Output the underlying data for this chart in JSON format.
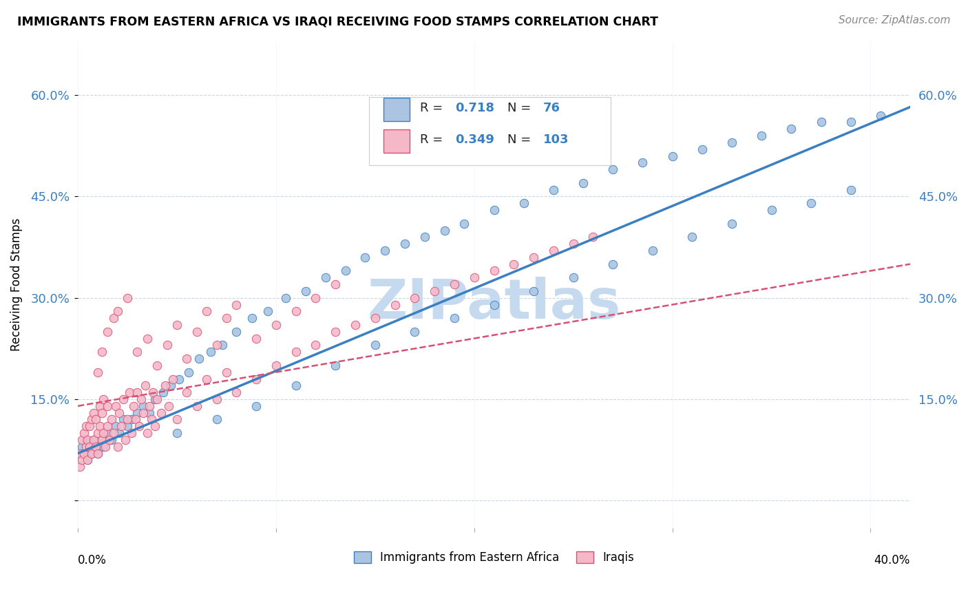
{
  "title": "IMMIGRANTS FROM EASTERN AFRICA VS IRAQI RECEIVING FOOD STAMPS CORRELATION CHART",
  "source": "Source: ZipAtlas.com",
  "ylabel": "Receiving Food Stamps",
  "yticks": [
    0.0,
    0.15,
    0.3,
    0.45,
    0.6
  ],
  "ytick_labels": [
    "",
    "15.0%",
    "30.0%",
    "45.0%",
    "60.0%"
  ],
  "xlim": [
    0.0,
    0.42
  ],
  "ylim": [
    -0.04,
    0.68
  ],
  "R_blue": "0.718",
  "N_blue": "76",
  "R_pink": "0.349",
  "N_pink": "103",
  "blue_color": "#aac4e2",
  "blue_line_color": "#3a7fc1",
  "pink_color": "#f5b8c8",
  "pink_line_color": "#d94f72",
  "watermark": "ZIPatlas",
  "watermark_color": "#c5d9ef",
  "background_color": "#ffffff",
  "grid_color": "#c8d8ea",
  "blue_reg": {
    "slope": 1.22,
    "intercept": 0.07
  },
  "pink_reg": {
    "slope": 0.5,
    "intercept": 0.14
  },
  "blue_scatter_x": [
    0.001,
    0.002,
    0.003,
    0.004,
    0.005,
    0.006,
    0.007,
    0.008,
    0.009,
    0.01,
    0.012,
    0.013,
    0.015,
    0.017,
    0.019,
    0.021,
    0.023,
    0.025,
    0.027,
    0.03,
    0.033,
    0.036,
    0.039,
    0.043,
    0.047,
    0.051,
    0.056,
    0.061,
    0.067,
    0.073,
    0.08,
    0.088,
    0.096,
    0.105,
    0.115,
    0.125,
    0.135,
    0.145,
    0.155,
    0.165,
    0.175,
    0.185,
    0.195,
    0.21,
    0.225,
    0.24,
    0.255,
    0.27,
    0.285,
    0.3,
    0.315,
    0.33,
    0.345,
    0.36,
    0.375,
    0.39,
    0.405,
    0.05,
    0.07,
    0.09,
    0.11,
    0.13,
    0.15,
    0.17,
    0.19,
    0.21,
    0.23,
    0.25,
    0.27,
    0.29,
    0.31,
    0.33,
    0.35,
    0.37,
    0.39
  ],
  "blue_scatter_y": [
    0.07,
    0.08,
    0.07,
    0.09,
    0.06,
    0.08,
    0.07,
    0.09,
    0.08,
    0.07,
    0.09,
    0.08,
    0.1,
    0.09,
    0.11,
    0.1,
    0.12,
    0.11,
    0.12,
    0.13,
    0.14,
    0.13,
    0.15,
    0.16,
    0.17,
    0.18,
    0.19,
    0.21,
    0.22,
    0.23,
    0.25,
    0.27,
    0.28,
    0.3,
    0.31,
    0.33,
    0.34,
    0.36,
    0.37,
    0.38,
    0.39,
    0.4,
    0.41,
    0.43,
    0.44,
    0.46,
    0.47,
    0.49,
    0.5,
    0.51,
    0.52,
    0.53,
    0.54,
    0.55,
    0.56,
    0.56,
    0.57,
    0.1,
    0.12,
    0.14,
    0.17,
    0.2,
    0.23,
    0.25,
    0.27,
    0.29,
    0.31,
    0.33,
    0.35,
    0.37,
    0.39,
    0.41,
    0.43,
    0.44,
    0.46
  ],
  "pink_scatter_x": [
    0.001,
    0.001,
    0.002,
    0.002,
    0.003,
    0.003,
    0.004,
    0.004,
    0.005,
    0.005,
    0.006,
    0.006,
    0.007,
    0.007,
    0.008,
    0.008,
    0.009,
    0.009,
    0.01,
    0.01,
    0.011,
    0.011,
    0.012,
    0.012,
    0.013,
    0.013,
    0.014,
    0.015,
    0.015,
    0.016,
    0.017,
    0.018,
    0.019,
    0.02,
    0.021,
    0.022,
    0.023,
    0.024,
    0.025,
    0.026,
    0.027,
    0.028,
    0.029,
    0.03,
    0.031,
    0.032,
    0.033,
    0.034,
    0.035,
    0.036,
    0.037,
    0.038,
    0.039,
    0.04,
    0.042,
    0.044,
    0.046,
    0.048,
    0.05,
    0.055,
    0.06,
    0.065,
    0.07,
    0.075,
    0.08,
    0.09,
    0.1,
    0.11,
    0.12,
    0.13,
    0.14,
    0.15,
    0.16,
    0.17,
    0.18,
    0.19,
    0.2,
    0.21,
    0.22,
    0.23,
    0.24,
    0.25,
    0.26,
    0.01,
    0.012,
    0.015,
    0.018,
    0.02,
    0.025,
    0.03,
    0.035,
    0.04,
    0.045,
    0.05,
    0.055,
    0.06,
    0.065,
    0.07,
    0.075,
    0.08,
    0.09,
    0.1,
    0.11,
    0.12,
    0.13
  ],
  "pink_scatter_y": [
    0.05,
    0.07,
    0.06,
    0.09,
    0.07,
    0.1,
    0.08,
    0.11,
    0.06,
    0.09,
    0.08,
    0.11,
    0.07,
    0.12,
    0.09,
    0.13,
    0.08,
    0.12,
    0.07,
    0.1,
    0.11,
    0.14,
    0.09,
    0.13,
    0.1,
    0.15,
    0.08,
    0.11,
    0.14,
    0.09,
    0.12,
    0.1,
    0.14,
    0.08,
    0.13,
    0.11,
    0.15,
    0.09,
    0.12,
    0.16,
    0.1,
    0.14,
    0.12,
    0.16,
    0.11,
    0.15,
    0.13,
    0.17,
    0.1,
    0.14,
    0.12,
    0.16,
    0.11,
    0.15,
    0.13,
    0.17,
    0.14,
    0.18,
    0.12,
    0.16,
    0.14,
    0.18,
    0.15,
    0.19,
    0.16,
    0.18,
    0.2,
    0.22,
    0.23,
    0.25,
    0.26,
    0.27,
    0.29,
    0.3,
    0.31,
    0.32,
    0.33,
    0.34,
    0.35,
    0.36,
    0.37,
    0.38,
    0.39,
    0.19,
    0.22,
    0.25,
    0.27,
    0.28,
    0.3,
    0.22,
    0.24,
    0.2,
    0.23,
    0.26,
    0.21,
    0.25,
    0.28,
    0.23,
    0.27,
    0.29,
    0.24,
    0.26,
    0.28,
    0.3,
    0.32
  ]
}
